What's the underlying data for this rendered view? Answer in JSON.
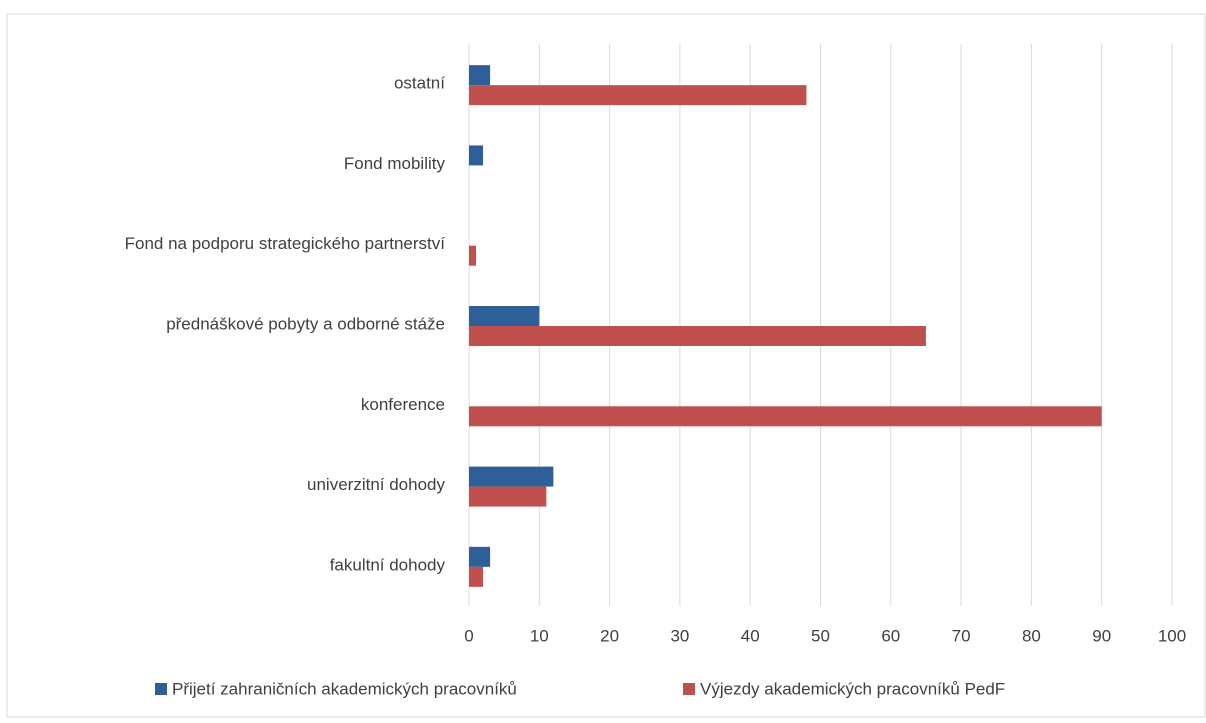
{
  "chart_data": {
    "type": "hbar",
    "categories": [
      "fakultní dohody",
      "univerzitní dohody",
      "konference",
      "přednáškové pobyty a odborné stáže",
      "Fond na podporu strategického partnerství",
      "Fond mobility",
      "ostatní"
    ],
    "series": [
      {
        "name": "Přijetí zahraničních akademických pracovníků",
        "color": "#2f5f98",
        "values": [
          3,
          12,
          0,
          10,
          0,
          2,
          3
        ]
      },
      {
        "name": "Výjezdy akademických pracovníků PedF",
        "color": "#c0504d",
        "values": [
          2,
          11,
          90,
          65,
          1,
          0,
          48
        ]
      }
    ],
    "xlim": [
      0,
      100
    ],
    "xticks": [
      0,
      10,
      20,
      30,
      40,
      50,
      60,
      70,
      80,
      90,
      100
    ],
    "grid": true,
    "legend": "bottom"
  }
}
